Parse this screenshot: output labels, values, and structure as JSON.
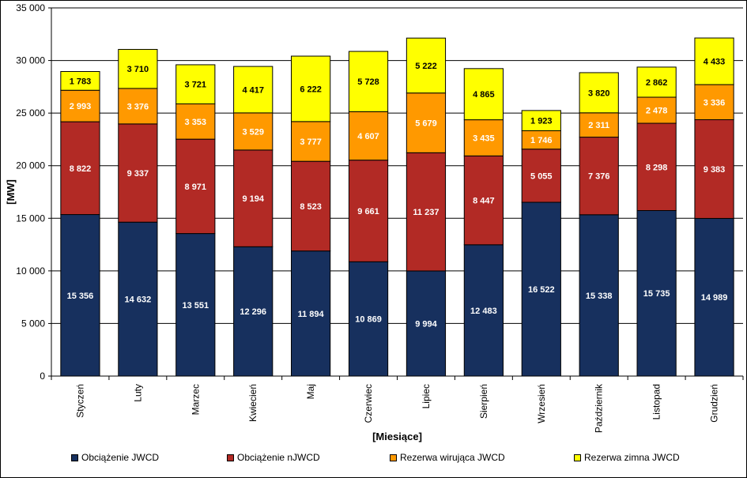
{
  "chart_data": {
    "type": "bar",
    "stacked": true,
    "title": "",
    "xlabel": "[Miesiące]",
    "ylabel": "[MW]",
    "ylim": [
      0,
      35000
    ],
    "yticks": [
      0,
      5000,
      10000,
      15000,
      20000,
      25000,
      30000,
      35000
    ],
    "ytick_labels": [
      "0",
      "5 000",
      "10 000",
      "15 000",
      "20 000",
      "25 000",
      "30 000",
      "35 000"
    ],
    "grid": true,
    "legend_position": "bottom",
    "categories": [
      "Styczeń",
      "Luty",
      "Marzec",
      "Kwiecień",
      "Maj",
      "Czerwiec",
      "Lipiec",
      "Sierpień",
      "Wrzesień",
      "Październik",
      "Listopad",
      "Grudzień"
    ],
    "series": [
      {
        "name": "Obciążenie JWCD",
        "color": "#17305e",
        "label_color": "#ffffff",
        "values": [
          15356,
          14632,
          13551,
          12296,
          11894,
          10869,
          9994,
          12483,
          16522,
          15338,
          15735,
          14989
        ],
        "labels": [
          "15 356",
          "14 632",
          "13 551",
          "12 296",
          "11 894",
          "10 869",
          "9 994",
          "12 483",
          "16 522",
          "15 338",
          "15 735",
          "14 989"
        ]
      },
      {
        "name": "Obciążenie nJWCD",
        "color": "#b22a25",
        "label_color": "#ffffff",
        "values": [
          8822,
          9337,
          8971,
          9194,
          8523,
          9661,
          11237,
          8447,
          5055,
          7376,
          8298,
          9383
        ],
        "labels": [
          "8 822",
          "9 337",
          "8 971",
          "9 194",
          "8 523",
          "9 661",
          "11 237",
          "8 447",
          "5 055",
          "7 376",
          "8 298",
          "9 383"
        ]
      },
      {
        "name": "Rezerwa wirująca JWCD",
        "color": "#ff9900",
        "label_color": "#ffffff",
        "values": [
          2993,
          3376,
          3353,
          3529,
          3777,
          4607,
          5679,
          3435,
          1746,
          2311,
          2478,
          3336
        ],
        "labels": [
          "2 993",
          "3 376",
          "3 353",
          "3 529",
          "3 777",
          "4 607",
          "5 679",
          "3 435",
          "1 746",
          "2 311",
          "2 478",
          "3 336"
        ]
      },
      {
        "name": "Rezerwa zimna JWCD",
        "color": "#ffff00",
        "label_color": "#000000",
        "values": [
          1783,
          3710,
          3721,
          4417,
          6222,
          5728,
          5222,
          4865,
          1923,
          3820,
          2862,
          4433
        ],
        "labels": [
          "1 783",
          "3 710",
          "3 721",
          "4 417",
          "6 222",
          "5 728",
          "5 222",
          "4 865",
          "1 923",
          "3 820",
          "2 862",
          "4 433"
        ]
      }
    ]
  }
}
